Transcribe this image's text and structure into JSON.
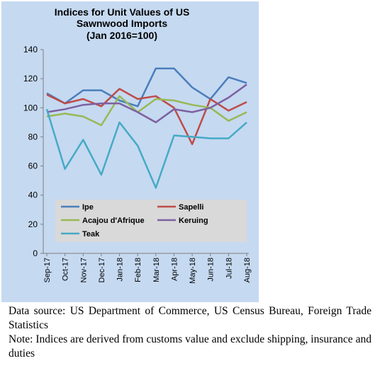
{
  "chart_data": {
    "type": "line",
    "title_lines": [
      "Indices for Unit Values of US",
      "Sawnwood Imports",
      "(Jan 2016=100)"
    ],
    "categories": [
      "Sep-17",
      "Oct-17",
      "Nov-17",
      "Dec-17",
      "Jan-18",
      "Feb-18",
      "Mar-18",
      "Apr-18",
      "May-18",
      "Jun-18",
      "Jul-18",
      "Aug-18"
    ],
    "ylim": [
      0,
      140
    ],
    "yticks": [
      "0",
      "20",
      "40",
      "60",
      "80",
      "100",
      "120",
      "140"
    ],
    "grid": false,
    "legend": "bottom-inside",
    "series": [
      {
        "name": "Ipe",
        "color": "#4a7ebb",
        "values": [
          110,
          103,
          112,
          112,
          105,
          101,
          127,
          127,
          114,
          106,
          121,
          117
        ]
      },
      {
        "name": "Sapelli",
        "color": "#be4b48",
        "values": [
          109,
          103,
          106,
          101,
          113,
          106,
          108,
          100,
          75,
          106,
          98,
          104
        ]
      },
      {
        "name": "Acajou d'Afrique",
        "color": "#98b954",
        "values": [
          94,
          96,
          94,
          88,
          108,
          97,
          106,
          105,
          102,
          100,
          91,
          97
        ]
      },
      {
        "name": "Keruing",
        "color": "#7d60a0",
        "values": [
          97,
          99,
          102,
          103,
          103,
          97,
          90,
          99,
          97,
          100,
          107,
          116
        ]
      },
      {
        "name": "Teak",
        "color": "#46aac5",
        "values": [
          99,
          58,
          78,
          54,
          90,
          74,
          45,
          81,
          80,
          79,
          79,
          90
        ]
      }
    ]
  },
  "caption": {
    "source": "Data source: US Department of Commerce, US Census Bureau, Foreign Trade Statistics",
    "note": "Note: Indices are derived from customs value and exclude shipping, insurance and duties"
  }
}
